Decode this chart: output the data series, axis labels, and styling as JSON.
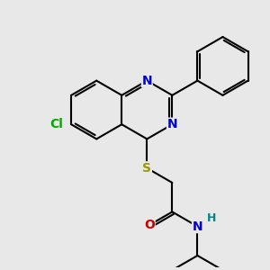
{
  "bg_color": "#e8e8e8",
  "bond_color": "#000000",
  "bond_width": 1.5,
  "atom_colors": {
    "N": "#0000cc",
    "S": "#999900",
    "O": "#cc0000",
    "Cl": "#00aa00",
    "H": "#008888",
    "C": "#000000"
  },
  "font_size": 10,
  "small_font_size": 9
}
